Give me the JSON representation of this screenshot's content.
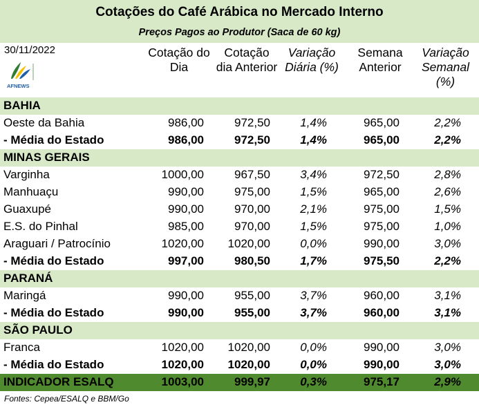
{
  "title": "Cotações do Café Arábica no Mercado Interno",
  "subtitle": "Preços Pagos ao Produtor (Saca de 60 kg)",
  "date": "30/11/2022",
  "logo_text": "AFNEWS",
  "headers": {
    "col1": "Cotação do Dia",
    "col2": "Cotação dia Anterior",
    "col3": "Variação Diária (%)",
    "col4": "Semana Anterior",
    "col5": "Variação Semanal (%)"
  },
  "colors": {
    "section_bg": "#d8e9c8",
    "indicator_bg": "#4f8a2f"
  },
  "rows": [
    {
      "type": "section",
      "label": "BAHIA"
    },
    {
      "type": "data",
      "label": "Oeste da Bahia",
      "dia": "986,00",
      "anterior": "972,50",
      "var_diaria": "1,4%",
      "semana": "965,00",
      "var_semanal": "2,2%"
    },
    {
      "type": "avg",
      "label": " - Média do Estado",
      "dia": "986,00",
      "anterior": "972,50",
      "var_diaria": "1,4%",
      "semana": "965,00",
      "var_semanal": "2,2%"
    },
    {
      "type": "section",
      "label": "MINAS GERAIS"
    },
    {
      "type": "data",
      "label": "Varginha",
      "dia": "1000,00",
      "anterior": "967,50",
      "var_diaria": "3,4%",
      "semana": "972,50",
      "var_semanal": "2,8%"
    },
    {
      "type": "data",
      "label": "Manhuaçu",
      "dia": "990,00",
      "anterior": "975,00",
      "var_diaria": "1,5%",
      "semana": "965,00",
      "var_semanal": "2,6%"
    },
    {
      "type": "data",
      "label": "Guaxupé",
      "dia": "990,00",
      "anterior": "970,00",
      "var_diaria": "2,1%",
      "semana": "975,00",
      "var_semanal": "1,5%"
    },
    {
      "type": "data",
      "label": "E.S. do Pinhal",
      "dia": "985,00",
      "anterior": "970,00",
      "var_diaria": "1,5%",
      "semana": "975,00",
      "var_semanal": "1,0%"
    },
    {
      "type": "data",
      "label": "Araguari /  Patrocínio",
      "dia": "1020,00",
      "anterior": "1020,00",
      "var_diaria": "0,0%",
      "semana": "990,00",
      "var_semanal": "3,0%"
    },
    {
      "type": "avg",
      "label": " - Média do Estado",
      "dia": "997,00",
      "anterior": "980,50",
      "var_diaria": "1,7%",
      "semana": "975,50",
      "var_semanal": "2,2%"
    },
    {
      "type": "section",
      "label": "PARANÁ"
    },
    {
      "type": "data",
      "label": "Maringá",
      "dia": "990,00",
      "anterior": "955,00",
      "var_diaria": "3,7%",
      "semana": "960,00",
      "var_semanal": "3,1%"
    },
    {
      "type": "avg",
      "label": " - Média do Estado",
      "dia": "990,00",
      "anterior": "955,00",
      "var_diaria": "3,7%",
      "semana": "960,00",
      "var_semanal": "3,1%"
    },
    {
      "type": "section",
      "label": "SÃO PAULO"
    },
    {
      "type": "data",
      "label": "Franca",
      "dia": "1020,00",
      "anterior": "1020,00",
      "var_diaria": "0,0%",
      "semana": "990,00",
      "var_semanal": "3,0%"
    },
    {
      "type": "avg",
      "label": " - Média do Estado",
      "dia": "1020,00",
      "anterior": "1020,00",
      "var_diaria": "0,0%",
      "semana": "990,00",
      "var_semanal": "3,0%"
    },
    {
      "type": "indicator",
      "label": "INDICADOR ESALQ",
      "dia": "1003,00",
      "anterior": "999,97",
      "var_diaria": "0,3%",
      "semana": "975,17",
      "var_semanal": "2,9%"
    }
  ],
  "source": "Fontes: Cepea/ESALQ e BBM/Go"
}
